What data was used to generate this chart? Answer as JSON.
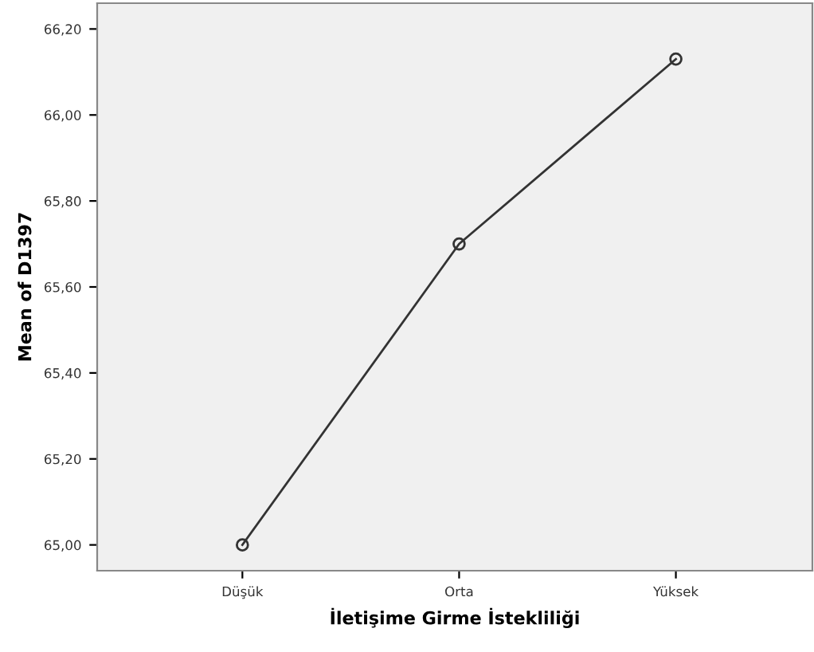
{
  "chart_data": {
    "type": "line",
    "xlabel": "İletişime Girme İstekliliği",
    "ylabel": "Mean of D1397",
    "categories": [
      "Düşük",
      "Orta",
      "Yüksek"
    ],
    "series": [
      {
        "color": "#333333",
        "values": [
          65.0,
          65.7,
          66.13
        ]
      }
    ],
    "ylim": [
      64.94,
      66.26
    ],
    "yticks": [
      {
        "value": 65.0,
        "label": "65,00"
      },
      {
        "value": 65.2,
        "label": "65,20"
      },
      {
        "value": 65.4,
        "label": "65,40"
      },
      {
        "value": 65.6,
        "label": "65,60"
      },
      {
        "value": 65.8,
        "label": "65,80"
      },
      {
        "value": 66.0,
        "label": "66,00"
      },
      {
        "value": 66.2,
        "label": "66,20"
      }
    ],
    "marker": "circle",
    "line_style": "solid",
    "grid": false,
    "legend": false
  }
}
